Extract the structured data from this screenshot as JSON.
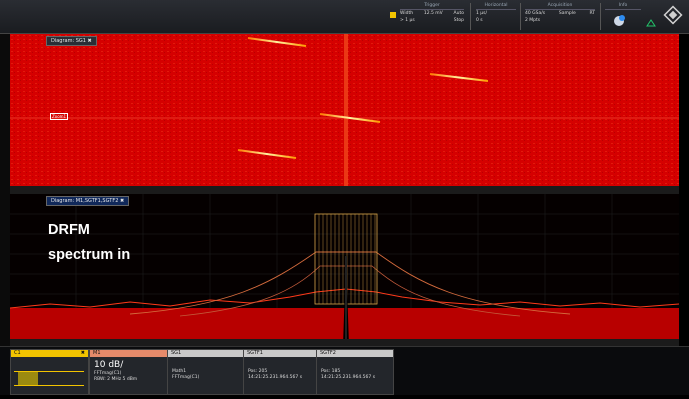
{
  "topbar": {
    "trigger": {
      "header": "Trigger",
      "rows": [
        [
          "Width",
          "12.5 mV",
          "Auto"
        ],
        [
          "> 1 µs",
          "",
          "Stop"
        ]
      ]
    },
    "horizontal": {
      "header": "Horizontal",
      "rows": [
        [
          "1 µs/",
          ""
        ],
        [
          "0 s",
          ""
        ]
      ]
    },
    "acquisition": {
      "header": "Acquisition",
      "rows": [
        [
          "40 GSa/s",
          "Sample",
          "RT"
        ],
        [
          "2 Mpts",
          "",
          ""
        ]
      ]
    },
    "info": {
      "header": "Info"
    }
  },
  "top_panel": {
    "tab": "Diagram: SG1 ✖",
    "marker": "Zoom1"
  },
  "bottom_panel": {
    "tab": "Diagram: M1,SGTF1,SGTF2 ✖"
  },
  "annotation": {
    "line1": "DRFM",
    "line2": "spectrum in"
  },
  "channels": [
    {
      "name": "C1",
      "close": "✖",
      "scale": "",
      "lines": []
    },
    {
      "name": "M1",
      "scale": "10 dB/",
      "lines": [
        "FFTmag(C1)",
        "RBW: 2 MHz      5 dBm"
      ]
    },
    {
      "name": "SG1",
      "scale": "",
      "lines": [
        "Math1",
        "FFTmag(C1)"
      ]
    },
    {
      "name": "SGTF1",
      "scale": "",
      "lines": [
        "Pos: 205",
        "14:21:25.231.964.567 s"
      ]
    },
    {
      "name": "SGTF2",
      "scale": "",
      "lines": [
        "Pos: 185",
        "14:21:25.231.964.567 s"
      ]
    }
  ],
  "colors": {
    "accent": "#f2c400",
    "spectrogram": "#d40000",
    "trace": "#ff2a10",
    "overlay": "#d9a64a"
  }
}
